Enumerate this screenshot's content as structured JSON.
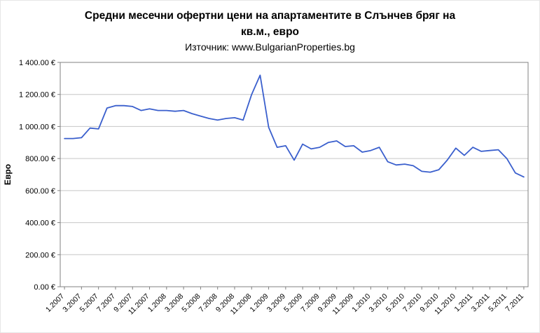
{
  "title": {
    "lines": [
      "Средни месечни офертни цени на апартаментите в Слънчев бряг на",
      "кв.м., евро"
    ]
  },
  "subtitle": "Източник: www.BulgarianProperties.bg",
  "chart_data": {
    "type": "line",
    "title": "Средни месечни офертни цени на апартаментите в Слънчев бряг на кв.м., евро",
    "source": "Източник: www.BulgarianProperties.bg",
    "ylabel": "Евро",
    "xlabel": "",
    "ylim": [
      0,
      1400
    ],
    "ytick_step": 200,
    "ytick_labels": [
      "0.00 €",
      "200.00 €",
      "400.00 €",
      "600.00 €",
      "800.00 €",
      "1 000.00 €",
      "1 200.00 €",
      "1 400.00 €"
    ],
    "x_label_interval": 2,
    "grid": true,
    "legend": "none",
    "line_color": "#3A5FCD",
    "grid_color": "#c6c6c6",
    "border_color": "#808080",
    "categories": [
      "1.2007",
      "2.2007",
      "3.2007",
      "4.2007",
      "5.2007",
      "6.2007",
      "7.2007",
      "8.2007",
      "9.2007",
      "10.2007",
      "11.2007",
      "12.2007",
      "1.2008",
      "2.2008",
      "3.2008",
      "4.2008",
      "5.2008",
      "6.2008",
      "7.2008",
      "8.2008",
      "9.2008",
      "10.2008",
      "11.2008",
      "12.2008",
      "1.2009",
      "2.2009",
      "3.2009",
      "4.2009",
      "5.2009",
      "6.2009",
      "7.2009",
      "8.2009",
      "9.2009",
      "10.2009",
      "11.2009",
      "12.2009",
      "1.2010",
      "2.2010",
      "3.2010",
      "4.2010",
      "5.2010",
      "6.2010",
      "7.2010",
      "8.2010",
      "9.2010",
      "10.2010",
      "11.2010",
      "12.2010",
      "1.2011",
      "2.2011",
      "3.2011",
      "4.2011",
      "5.2011",
      "6.2011",
      "7.2011"
    ],
    "values": [
      925,
      925,
      930,
      990,
      985,
      1115,
      1130,
      1130,
      1125,
      1100,
      1110,
      1100,
      1100,
      1095,
      1100,
      1080,
      1065,
      1050,
      1040,
      1050,
      1055,
      1040,
      1200,
      1320,
      995,
      870,
      880,
      790,
      890,
      860,
      870,
      900,
      910,
      875,
      880,
      840,
      850,
      870,
      780,
      760,
      765,
      755,
      720,
      715,
      730,
      790,
      865,
      820,
      870,
      845,
      850,
      855,
      800,
      710,
      685
    ]
  }
}
